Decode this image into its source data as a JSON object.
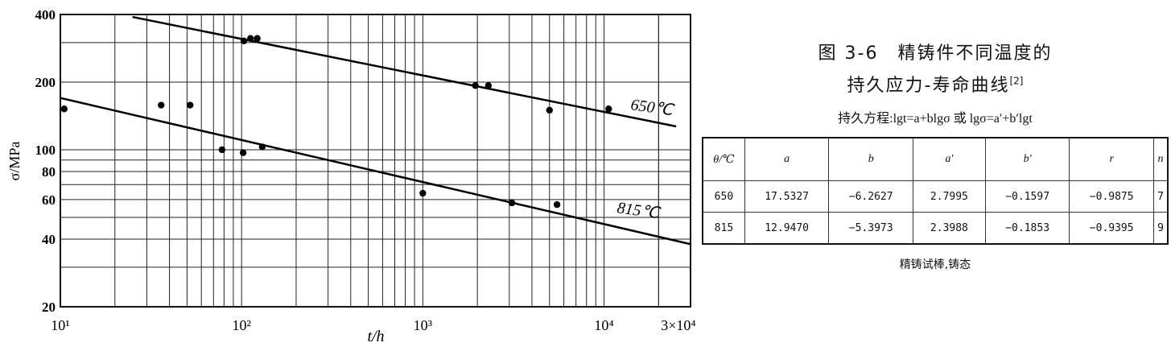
{
  "chart_data": {
    "type": "scatter",
    "x_scale": "log",
    "y_scale": "log",
    "xlim": [
      10,
      30000
    ],
    "ylim": [
      20,
      400
    ],
    "xlabel": "t/h",
    "ylabel": "σ/MPa",
    "x_ticks": [
      {
        "value": 10,
        "label": "10¹"
      },
      {
        "value": 100,
        "label": "10²"
      },
      {
        "value": 1000,
        "label": "10³"
      },
      {
        "value": 10000,
        "label": "10⁴"
      },
      {
        "value": 30000,
        "label": "3×10⁴"
      }
    ],
    "y_ticks": [
      {
        "value": 20,
        "label": "20"
      },
      {
        "value": 40,
        "label": "40"
      },
      {
        "value": 60,
        "label": "60"
      },
      {
        "value": 80,
        "label": "80"
      },
      {
        "value": 100,
        "label": "100"
      },
      {
        "value": 200,
        "label": "200"
      },
      {
        "value": 400,
        "label": "400"
      }
    ],
    "grid": true,
    "series": [
      {
        "name": "650℃",
        "line": {
          "x": [
            25,
            25000
          ],
          "y": [
            390,
            127
          ]
        },
        "points": [
          {
            "x": 103,
            "y": 305
          },
          {
            "x": 112,
            "y": 313
          },
          {
            "x": 122,
            "y": 313
          },
          {
            "x": 1950,
            "y": 193
          },
          {
            "x": 2300,
            "y": 193
          },
          {
            "x": 5000,
            "y": 150
          },
          {
            "x": 10600,
            "y": 152
          }
        ]
      },
      {
        "name": "815℃",
        "line": {
          "x": [
            10,
            30000
          ],
          "y": [
            170,
            38
          ]
        },
        "points": [
          {
            "x": 10.5,
            "y": 152
          },
          {
            "x": 36,
            "y": 158
          },
          {
            "x": 52,
            "y": 158
          },
          {
            "x": 78,
            "y": 100
          },
          {
            "x": 102,
            "y": 97
          },
          {
            "x": 130,
            "y": 103
          },
          {
            "x": 1000,
            "y": 64
          },
          {
            "x": 3100,
            "y": 58
          },
          {
            "x": 5500,
            "y": 57
          }
        ]
      }
    ]
  },
  "caption": {
    "line1": "图 3-6　精铸件不同温度的",
    "line2": "持久应力-寿命曲线",
    "ref": "[2]"
  },
  "equation": "持久方程:lgt=a+blgσ 或 lgσ=a′+b′lgt",
  "table": {
    "headers": [
      "θ/℃",
      "a",
      "b",
      "a′",
      "b′",
      "r",
      "n"
    ],
    "rows": [
      [
        "650",
        "17.5327",
        "−6.2627",
        "2.7995",
        "−0.1597",
        "−0.9875",
        "7"
      ],
      [
        "815",
        "12.9470",
        "−5.3973",
        "2.3988",
        "−0.1853",
        "−0.9395",
        "9"
      ]
    ]
  },
  "note": "精铸试棒,铸态"
}
